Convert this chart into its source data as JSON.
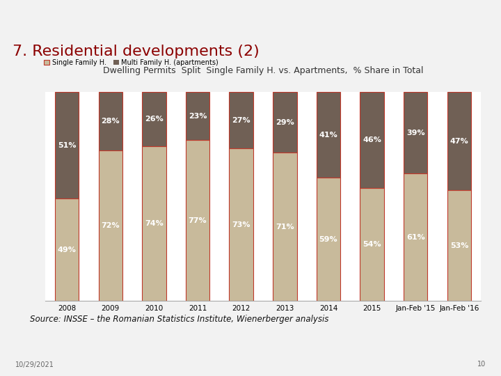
{
  "title": "Dwelling Permits  Split  Single Family H. vs. Apartments,  % Share in Total",
  "categories": [
    "2008",
    "2009",
    "2010",
    "2011",
    "2012",
    "2013",
    "2014",
    "2015",
    "Jan-Feb '15",
    "Jan-Feb '16"
  ],
  "single_family": [
    49,
    72,
    74,
    77,
    73,
    71,
    59,
    54,
    61,
    53
  ],
  "multi_family": [
    51,
    28,
    26,
    23,
    27,
    29,
    41,
    46,
    39,
    47
  ],
  "color_single": "#C8BA9B",
  "color_multi": "#706055",
  "bar_edge_color": "#C0392B",
  "bar_edge_width": 0.8,
  "legend_single": "Single Family H.",
  "legend_multi": "Multi Family H. (apartments)",
  "source_text": "Source: INSSE – the Romanian Statistics Institute, Wienerberger analysis",
  "header_text": "7. Residential developments (2)",
  "header_color": "#8B0000",
  "header_bg": "#ECECEC",
  "top_bar_color": "#C8C8C8",
  "date_text": "10/29/2021",
  "page_text": "10",
  "bg_color": "#F2F2F2",
  "plot_bg_color": "#FFFFFF",
  "title_fontsize": 9,
  "label_fontsize": 8,
  "legend_fontsize": 7,
  "header_fontsize": 16,
  "xticklabel_fontsize": 7.5
}
